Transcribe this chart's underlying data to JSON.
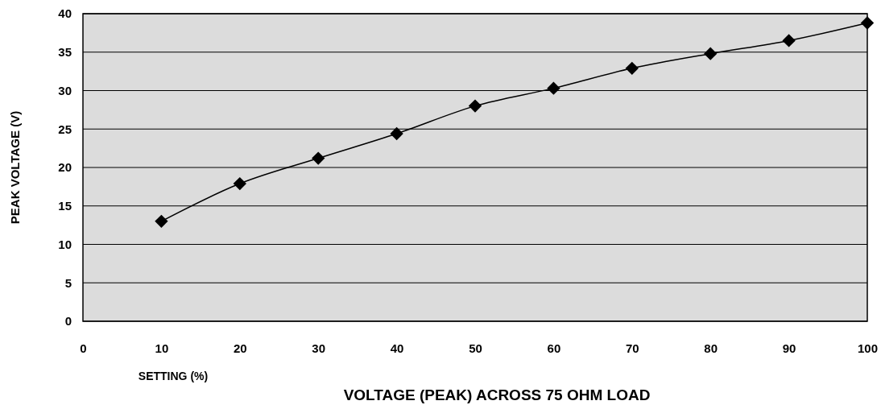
{
  "chart_data": {
    "type": "line",
    "title": "VOLTAGE (PEAK) ACROSS 75 OHM LOAD",
    "xlabel": "SETTING (%)",
    "ylabel": "PEAK VOLTAGE (V)",
    "x": [
      10,
      20,
      30,
      40,
      50,
      60,
      70,
      80,
      90,
      100
    ],
    "series": [
      {
        "color": "#000000",
        "values": [
          13.0,
          17.9,
          21.2,
          24.4,
          28.0,
          30.3,
          32.9,
          34.8,
          36.5,
          38.8
        ]
      }
    ],
    "xlim": [
      0,
      100
    ],
    "xticks": [
      0,
      10,
      20,
      30,
      40,
      50,
      60,
      70,
      80,
      90,
      100
    ],
    "ylim": [
      0,
      40
    ],
    "yticks": [
      0,
      5,
      10,
      15,
      20,
      25,
      30,
      35,
      40
    ],
    "grid": "y",
    "marker": "diamond",
    "line_style": "solid"
  }
}
